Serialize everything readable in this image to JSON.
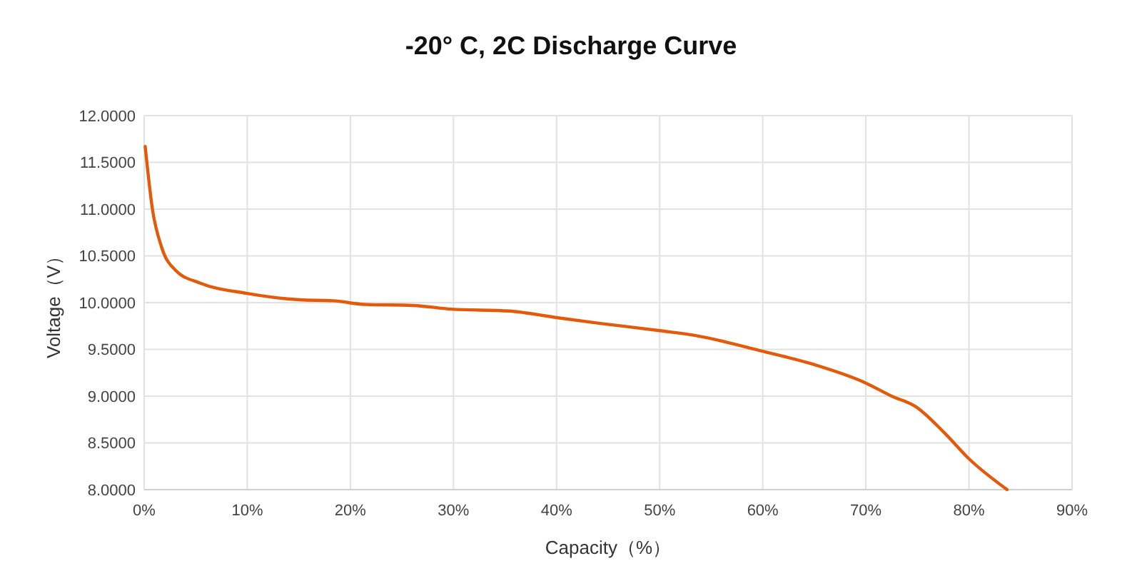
{
  "chart_data": {
    "type": "line",
    "title": "-20°  C, 2C Discharge Curve",
    "xlabel": "Capacity（%）",
    "ylabel": "Voltage（V）",
    "x": [
      0.1,
      0.8,
      1.7,
      3.1,
      5.4,
      9.9,
      15.1,
      18.3,
      21.5,
      26.1,
      29.8,
      35.4,
      40,
      44.1,
      50,
      53.4,
      60,
      64.6,
      70,
      72.5,
      74.8,
      77.6,
      80,
      83.7
    ],
    "series": [
      {
        "color": "#e35a0a",
        "values": [
          11.67,
          11.0,
          10.59,
          10.34,
          10.21,
          10.1,
          10.03,
          10.02,
          9.98,
          9.97,
          9.93,
          9.91,
          9.84,
          9.78,
          9.7,
          9.65,
          9.48,
          9.35,
          9.14,
          9.0,
          8.89,
          8.61,
          8.33,
          8.0
        ]
      }
    ],
    "xlim": [
      0,
      90
    ],
    "xticks": [
      {
        "value": 0,
        "label": "0%"
      },
      {
        "value": 10,
        "label": "10%"
      },
      {
        "value": 20,
        "label": "20%"
      },
      {
        "value": 30,
        "label": "30%"
      },
      {
        "value": 40,
        "label": "40%"
      },
      {
        "value": 50,
        "label": "50%"
      },
      {
        "value": 60,
        "label": "60%"
      },
      {
        "value": 70,
        "label": "70%"
      },
      {
        "value": 80,
        "label": "80%"
      },
      {
        "value": 90,
        "label": "90%"
      }
    ],
    "ylim": [
      8,
      12
    ],
    "yticks": [
      {
        "value": 8,
        "label": "8.0000"
      },
      {
        "value": 8.5,
        "label": "8.5000"
      },
      {
        "value": 9,
        "label": "9.0000"
      },
      {
        "value": 9.5,
        "label": "9.5000"
      },
      {
        "value": 10,
        "label": "10.0000"
      },
      {
        "value": 10.5,
        "label": "10.5000"
      },
      {
        "value": 11,
        "label": "11.0000"
      },
      {
        "value": 11.5,
        "label": "11.5000"
      },
      {
        "value": 12,
        "label": "12.0000"
      }
    ],
    "grid": true,
    "marker": "none",
    "line_style": "solid"
  }
}
